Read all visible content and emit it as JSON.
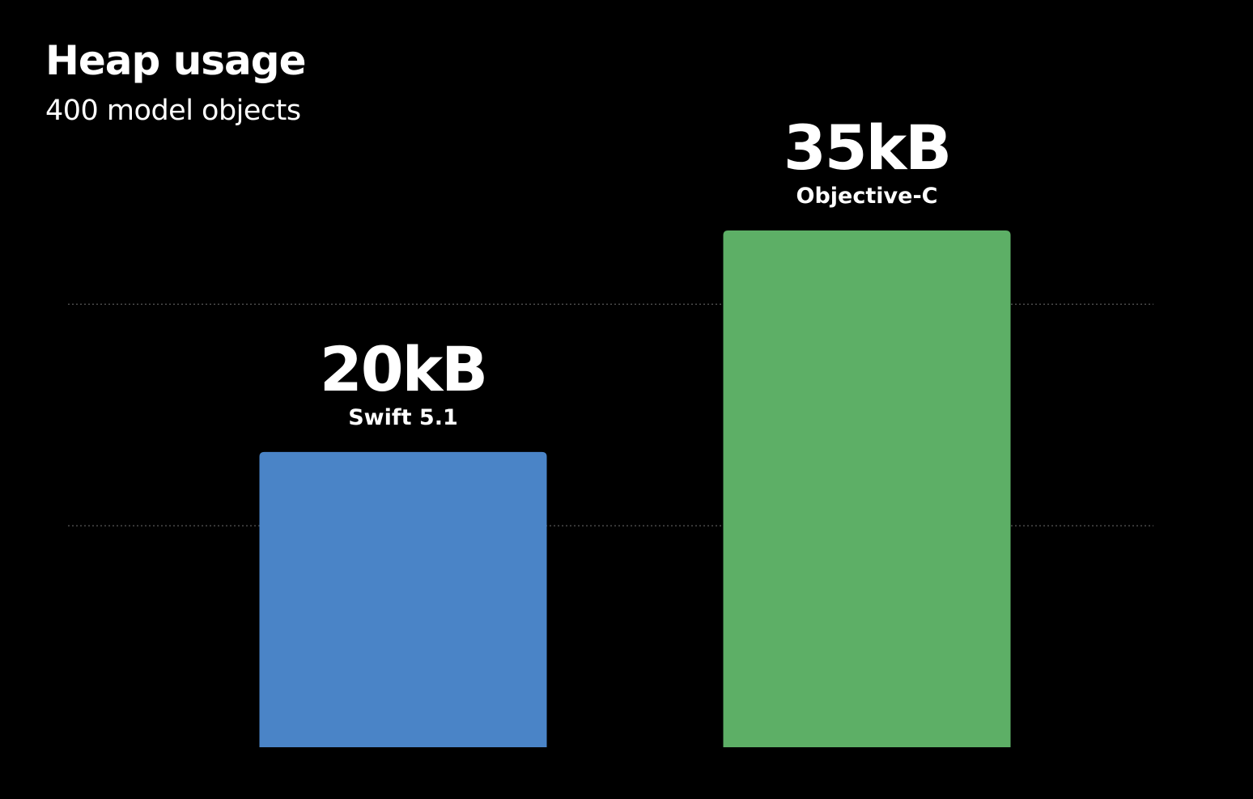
{
  "chart_data": {
    "type": "bar",
    "title": "Heap usage",
    "subtitle": "400 model objects",
    "categories": [
      "Swift 5.1",
      "Objective-C"
    ],
    "values": [
      20,
      35
    ],
    "value_labels": [
      "20kB",
      "35kB"
    ],
    "unit": "kB",
    "xlabel": "",
    "ylabel": "",
    "grid": true,
    "gridlines": [
      15,
      30
    ],
    "legend": "none",
    "colors": [
      "#4A84C7",
      "#5DAF66"
    ]
  }
}
